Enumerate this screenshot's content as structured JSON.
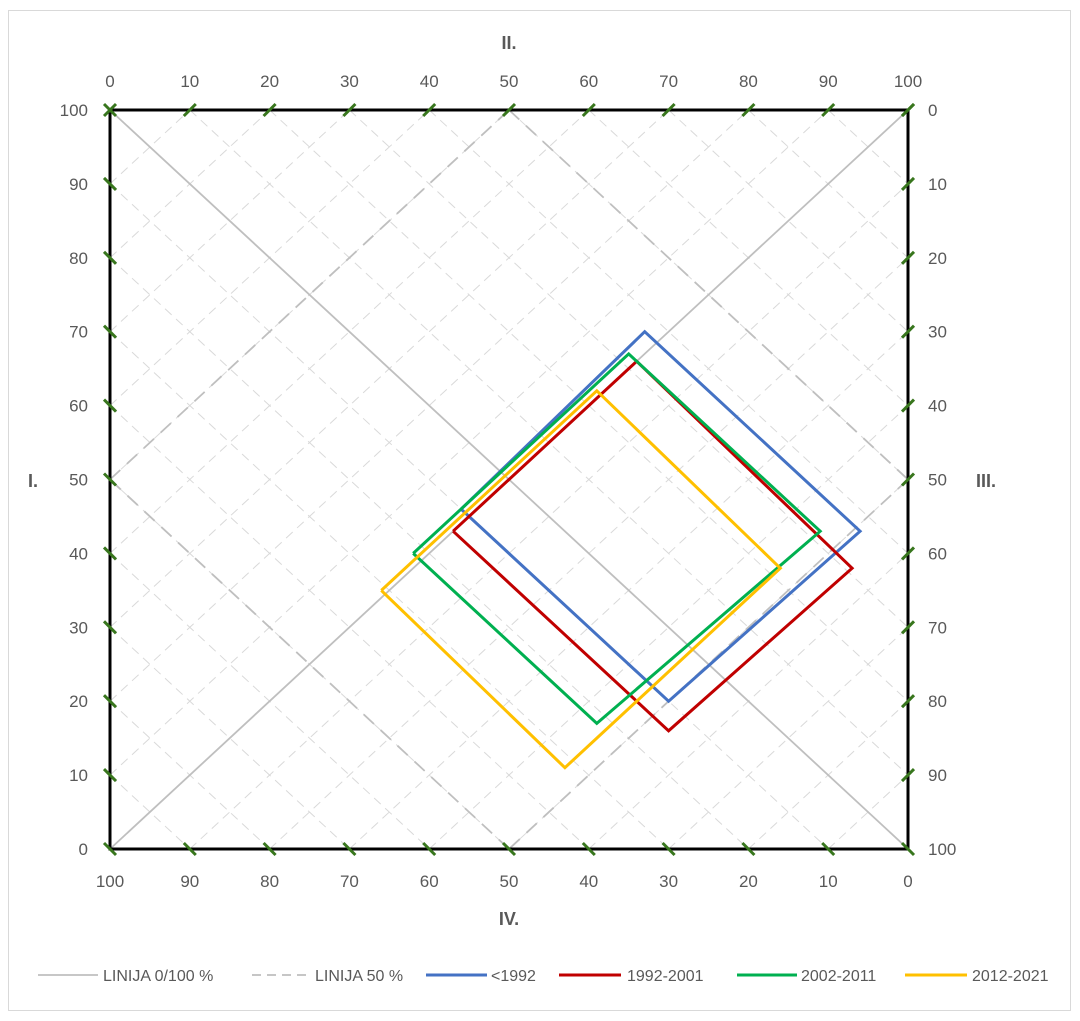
{
  "chart_data": {
    "type": "line",
    "axis_titles": {
      "left": "I.",
      "top": "II.",
      "right": "III.",
      "bottom": "IV."
    },
    "axes": {
      "left": {
        "ticks": [
          0,
          10,
          20,
          30,
          40,
          50,
          60,
          70,
          80,
          90,
          100
        ]
      },
      "top": {
        "ticks": [
          0,
          10,
          20,
          30,
          40,
          50,
          60,
          70,
          80,
          90,
          100
        ]
      },
      "right": {
        "ticks": [
          100,
          90,
          80,
          70,
          60,
          50,
          40,
          30,
          20,
          10,
          0
        ]
      },
      "bottom": {
        "ticks": [
          100,
          90,
          80,
          70,
          60,
          50,
          40,
          30,
          20,
          10,
          0
        ]
      }
    },
    "xlim": [
      0,
      100
    ],
    "ylim": [
      0,
      100
    ],
    "reference_lines": [
      {
        "name": "LINIJA 0/100 %",
        "color": "#bfbfbf",
        "dash": "solid",
        "segments": [
          [
            [
              0,
              0
            ],
            [
              100,
              100
            ]
          ],
          [
            [
              0,
              100
            ],
            [
              100,
              0
            ]
          ]
        ]
      },
      {
        "name": "LINIJA 50 %",
        "color": "#bfbfbf",
        "dash": "dashed",
        "segments": [
          [
            [
              0,
              50
            ],
            [
              50,
              100
            ]
          ],
          [
            [
              50,
              100
            ],
            [
              100,
              50
            ]
          ],
          [
            [
              100,
              50
            ],
            [
              50,
              0
            ]
          ],
          [
            [
              50,
              0
            ],
            [
              0,
              50
            ]
          ]
        ]
      }
    ],
    "series": [
      {
        "name": "<1992",
        "color": "#4472c4",
        "points": [
          [
            44,
            46
          ],
          [
            67,
            70
          ],
          [
            94,
            43
          ],
          [
            70,
            20
          ],
          [
            44,
            46
          ]
        ]
      },
      {
        "name": "1992-2001",
        "color": "#c00000",
        "points": [
          [
            43,
            43
          ],
          [
            66,
            66
          ],
          [
            93,
            38
          ],
          [
            70,
            16
          ],
          [
            43,
            43
          ]
        ]
      },
      {
        "name": "2002-2011",
        "color": "#00b050",
        "points": [
          [
            38,
            40
          ],
          [
            65,
            67
          ],
          [
            89,
            43
          ],
          [
            61,
            17
          ],
          [
            38,
            40
          ]
        ]
      },
      {
        "name": "2012-2021",
        "color": "#ffc000",
        "points": [
          [
            34,
            35
          ],
          [
            61,
            62
          ],
          [
            84,
            38
          ],
          [
            57,
            11
          ],
          [
            34,
            35
          ]
        ]
      }
    ],
    "legend": {
      "placement": "bottom"
    },
    "grid": true
  }
}
